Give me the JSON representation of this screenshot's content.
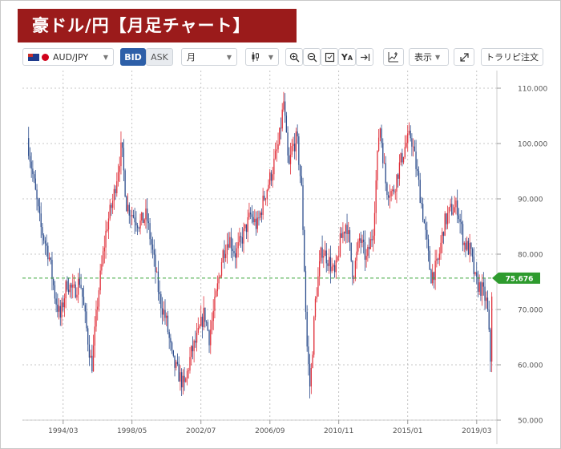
{
  "title": "豪ドル/円【月足チャート】",
  "toolbar": {
    "pair": "AUD/JPY",
    "bid_label": "BID",
    "ask_label": "ASK",
    "timeframe": "月",
    "display_label": "表示",
    "trade_label": "トラリピ注文",
    "icons": [
      "candle-icon",
      "zoom-in-icon",
      "zoom-out-icon",
      "fit-icon",
      "ya-icon",
      "jump-end-icon",
      "indicator-icon",
      "fullscreen-icon"
    ]
  },
  "colors": {
    "up": "#e0303a",
    "down": "#2b4c8c",
    "current_line": "#3aa53a",
    "price_tag": "#2e9b2e",
    "grid": "#b5b5b5"
  },
  "chart_data": {
    "type": "candlestick",
    "title": "",
    "xlabel": "",
    "ylabel": "",
    "ylim": [
      50,
      112
    ],
    "grid": true,
    "y_ticks": [
      "110.000",
      "100.000",
      "90.000",
      "80.000",
      "70.000",
      "60.000",
      "50.000"
    ],
    "y_tick_values": [
      110,
      100,
      90,
      80,
      70,
      60,
      50
    ],
    "x_ticks": [
      "1994/03",
      "1998/05",
      "2002/07",
      "2006/09",
      "2010/11",
      "2015/01",
      "2019/03"
    ],
    "x_tick_values": [
      1994.17,
      1998.33,
      2002.5,
      2006.67,
      2010.83,
      2015.0,
      2019.17
    ],
    "x_range": [
      1992.0,
      2020.1
    ],
    "current_price": 75.676,
    "current_price_label": "75.676",
    "path": [
      [
        1992.0,
        101.0
      ],
      [
        1992.4,
        93.0
      ],
      [
        1992.8,
        85.0
      ],
      [
        1993.3,
        80.0
      ],
      [
        1993.7,
        72.0
      ],
      [
        1994.0,
        68.5
      ],
      [
        1994.4,
        75.0
      ],
      [
        1994.8,
        73.0
      ],
      [
        1995.2,
        75.5
      ],
      [
        1995.6,
        66.0
      ],
      [
        1995.9,
        59.5
      ],
      [
        1996.3,
        73.0
      ],
      [
        1996.8,
        85.0
      ],
      [
        1997.2,
        90.0
      ],
      [
        1997.7,
        99.5
      ],
      [
        1998.0,
        89.0
      ],
      [
        1998.4,
        87.0
      ],
      [
        1998.8,
        85.5
      ],
      [
        1999.2,
        87.0
      ],
      [
        1999.6,
        80.0
      ],
      [
        2000.0,
        72.0
      ],
      [
        2000.4,
        68.0
      ],
      [
        2000.8,
        60.5
      ],
      [
        2001.2,
        58.0
      ],
      [
        2001.5,
        56.0
      ],
      [
        2001.9,
        62.0
      ],
      [
        2002.3,
        65.0
      ],
      [
        2002.7,
        69.5
      ],
      [
        2003.0,
        65.0
      ],
      [
        2003.4,
        72.0
      ],
      [
        2003.8,
        80.0
      ],
      [
        2004.2,
        83.0
      ],
      [
        2004.6,
        80.0
      ],
      [
        2005.0,
        83.0
      ],
      [
        2005.5,
        87.0
      ],
      [
        2005.9,
        85.0
      ],
      [
        2006.3,
        90.0
      ],
      [
        2006.8,
        95.0
      ],
      [
        2007.2,
        100.0
      ],
      [
        2007.5,
        107.5
      ],
      [
        2007.8,
        95.0
      ],
      [
        2008.0,
        99.0
      ],
      [
        2008.3,
        101.0
      ],
      [
        2008.6,
        91.0
      ],
      [
        2008.9,
        64.0
      ],
      [
        2009.1,
        55.5
      ],
      [
        2009.4,
        71.0
      ],
      [
        2009.8,
        81.0
      ],
      [
        2010.2,
        79.0
      ],
      [
        2010.6,
        76.0
      ],
      [
        2010.9,
        82.0
      ],
      [
        2011.3,
        86.0
      ],
      [
        2011.7,
        76.0
      ],
      [
        2012.1,
        83.0
      ],
      [
        2012.5,
        79.0
      ],
      [
        2012.9,
        84.0
      ],
      [
        2013.3,
        104.0
      ],
      [
        2013.7,
        92.0
      ],
      [
        2014.1,
        91.0
      ],
      [
        2014.5,
        96.0
      ],
      [
        2014.9,
        100.0
      ],
      [
        2015.2,
        101.5
      ],
      [
        2015.6,
        94.0
      ],
      [
        2016.0,
        85.5
      ],
      [
        2016.4,
        76.0
      ],
      [
        2016.8,
        78.0
      ],
      [
        2017.2,
        85.5
      ],
      [
        2017.6,
        88.0
      ],
      [
        2018.0,
        88.5
      ],
      [
        2018.4,
        82.0
      ],
      [
        2018.8,
        80.5
      ],
      [
        2019.1,
        75.0
      ],
      [
        2019.5,
        73.5
      ],
      [
        2019.8,
        71.0
      ],
      [
        2020.0,
        61.0
      ],
      [
        2020.1,
        75.7
      ]
    ]
  }
}
